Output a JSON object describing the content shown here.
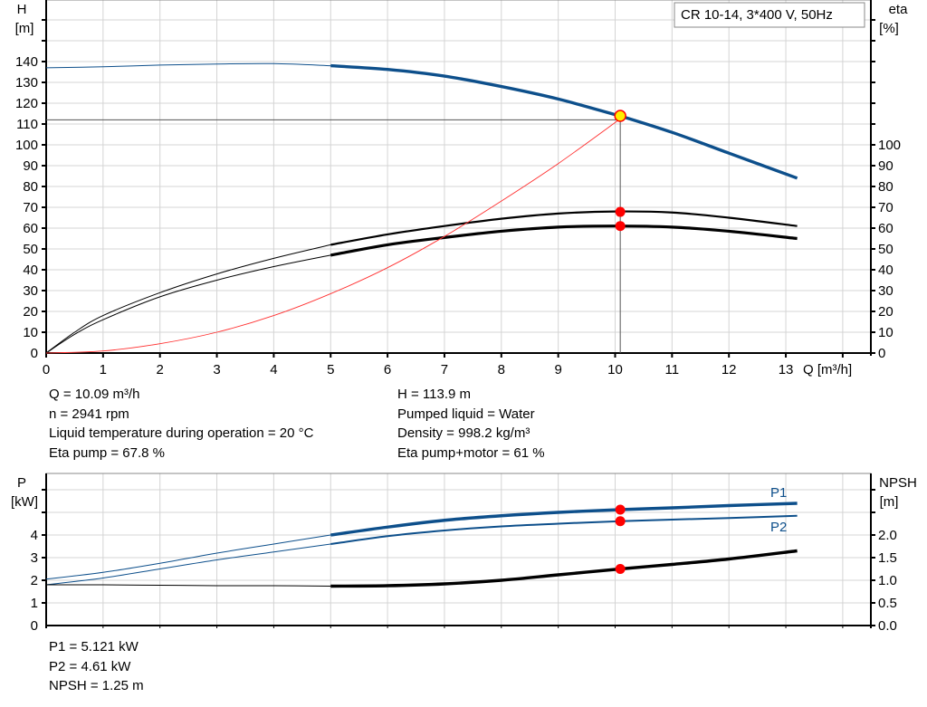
{
  "chart_data": [
    {
      "type": "line",
      "title": "CR 10-14, 3*400 V, 50Hz",
      "xlabel": "Q [m³/h]",
      "ylabel": "H\n[m]",
      "ylabel_right": "eta\n[%]",
      "xlim": [
        0,
        14.5
      ],
      "ylim": [
        0,
        160
      ],
      "ylim_right": [
        0,
        160
      ],
      "xticks": [
        "0",
        "1",
        "2",
        "3",
        "4",
        "5",
        "6",
        "7",
        "8",
        "9",
        "10",
        "11",
        "12",
        "13"
      ],
      "yticks": [
        "0",
        "10",
        "20",
        "30",
        "40",
        "50",
        "60",
        "70",
        "80",
        "90",
        "100",
        "110",
        "120",
        "130",
        "140"
      ],
      "yticks_right": [
        "0",
        "10",
        "20",
        "30",
        "40",
        "50",
        "60",
        "70",
        "80",
        "90",
        "100"
      ],
      "grid": true,
      "series": [
        {
          "id": "H",
          "axis": "left",
          "color": "#0d4f8b",
          "x": [
            0,
            1,
            2,
            3,
            4,
            5,
            6,
            7,
            8,
            9,
            10,
            10.09,
            11,
            12,
            13.2
          ],
          "y": [
            137,
            137.5,
            138.3,
            138.8,
            139,
            138,
            136.2,
            133,
            128,
            122,
            114.5,
            113.9,
            106,
            96,
            84
          ]
        },
        {
          "id": "eta-pump",
          "axis": "right",
          "color": "#000000",
          "x": [
            0,
            0.5,
            1,
            2,
            3,
            4,
            5,
            6,
            7,
            8,
            9,
            10,
            11,
            12,
            13.2
          ],
          "y": [
            0,
            10,
            18,
            29,
            38,
            45.5,
            52,
            57,
            61,
            64.5,
            67,
            68,
            67.5,
            65,
            61
          ]
        },
        {
          "id": "eta-pump-motor",
          "axis": "right",
          "color": "#000000",
          "x": [
            0,
            0.5,
            1,
            2,
            3,
            4,
            5,
            6,
            7,
            8,
            9,
            10,
            11,
            12,
            13.2
          ],
          "y": [
            0,
            9,
            16,
            27,
            35,
            41.5,
            47,
            52,
            55.5,
            58.5,
            60.5,
            61,
            60.5,
            58.5,
            55
          ]
        },
        {
          "id": "system",
          "axis": "left",
          "color": "#ff3030",
          "x": [
            0,
            1,
            2,
            3,
            4,
            5,
            6,
            7,
            8,
            9,
            10.09
          ],
          "y": [
            0,
            1,
            4.5,
            10,
            18,
            28.5,
            41,
            56,
            73,
            91,
            112.5
          ]
        }
      ],
      "duty_point": {
        "Q": 10.09,
        "H": 113.9,
        "eta_pump": 67.8,
        "eta_pump_motor": 61
      }
    },
    {
      "type": "line",
      "xlim": [
        0,
        14.5
      ],
      "ylabel": "P\n[kW]",
      "ylabel_right": "NPSH\n[m]",
      "ylim": [
        0,
        6
      ],
      "ylim_right": [
        0,
        3
      ],
      "yticks": [
        "0",
        "1",
        "2",
        "3",
        "4"
      ],
      "yticks_right": [
        "0.0",
        "0.5",
        "1.0",
        "1.5",
        "2.0"
      ],
      "grid": true,
      "series": [
        {
          "id": "P1",
          "name": "P1",
          "axis": "left",
          "color": "#0d4f8b",
          "x": [
            0,
            1,
            2,
            3,
            4,
            5,
            6,
            7,
            8,
            9,
            10.09,
            11,
            12,
            13.2
          ],
          "y": [
            2.05,
            2.35,
            2.75,
            3.2,
            3.6,
            4.0,
            4.35,
            4.65,
            4.85,
            5.0,
            5.12,
            5.2,
            5.3,
            5.4
          ]
        },
        {
          "id": "P2",
          "name": "P2",
          "axis": "left",
          "color": "#0d4f8b",
          "x": [
            0,
            1,
            2,
            3,
            4,
            5,
            6,
            7,
            8,
            9,
            10.09,
            11,
            12,
            13.2
          ],
          "y": [
            1.8,
            2.1,
            2.5,
            2.9,
            3.25,
            3.6,
            3.95,
            4.2,
            4.38,
            4.5,
            4.61,
            4.68,
            4.75,
            4.85
          ]
        },
        {
          "id": "NPSH",
          "axis": "right",
          "color": "#000000",
          "x": [
            0,
            1,
            2,
            3,
            4,
            5,
            6,
            7,
            8,
            9,
            10.09,
            11,
            12,
            13.2
          ],
          "y": [
            0.9,
            0.9,
            0.89,
            0.88,
            0.88,
            0.87,
            0.88,
            0.92,
            1.0,
            1.12,
            1.25,
            1.35,
            1.47,
            1.65
          ]
        }
      ],
      "duty_point": {
        "Q": 10.09,
        "P1": 5.121,
        "P2": 4.61,
        "NPSH": 1.25
      }
    }
  ],
  "info_top_left": [
    "Q = 10.09 m³/h",
    "n = 2941 rpm",
    "Liquid temperature during operation = 20 °C",
    "Eta pump = 67.8 %"
  ],
  "info_top_right": [
    "H = 113.9 m",
    "Pumped liquid = Water",
    "Density = 998.2 kg/m³",
    "Eta pump+motor = 61 %"
  ],
  "info_bottom": [
    "P1 = 5.121 kW",
    "P2 = 4.61 kW",
    "NPSH = 1.25 m"
  ]
}
